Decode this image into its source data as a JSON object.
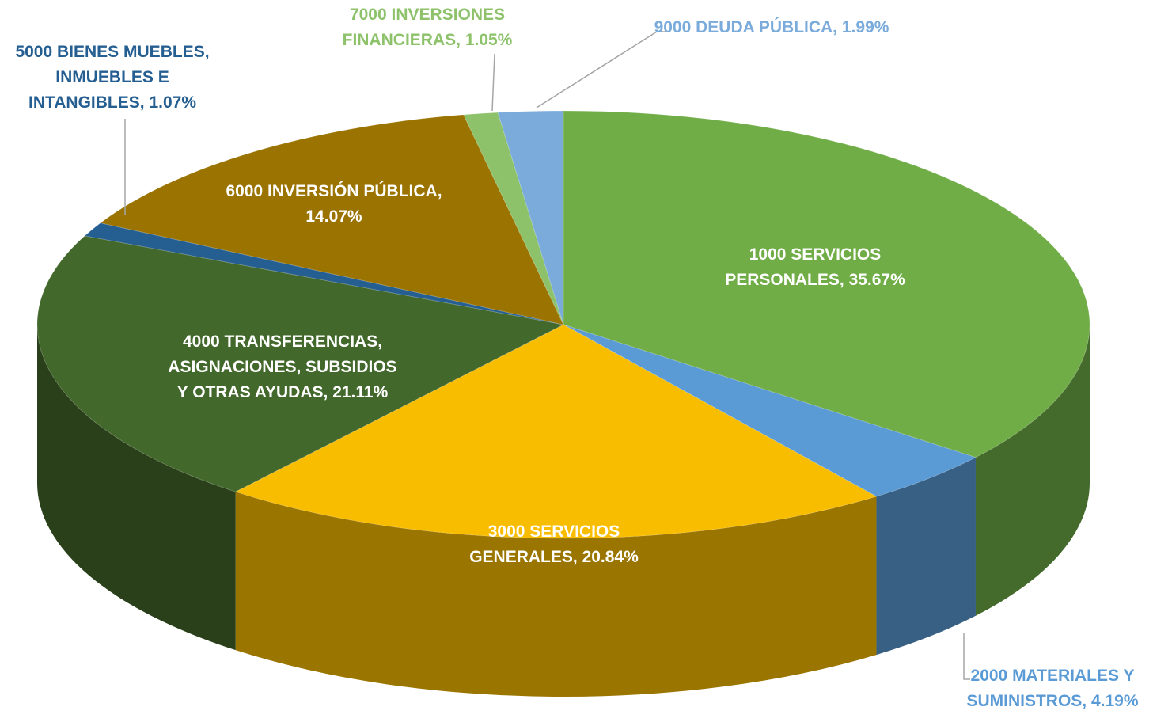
{
  "chart_data": {
    "type": "pie3d",
    "categories": [
      "1000 SERVICIOS PERSONALES,",
      "2000 MATERIALES Y SUMINISTROS,",
      "3000 SERVICIOS GENERALES,",
      "4000 TRANSFERENCIAS, ASIGNACIONES, SUBSIDIOS Y OTRAS AYUDAS,",
      "5000 BIENES MUEBLES, INMUEBLES E INTANGIBLES,",
      "6000 INVERSIÓN PÚBLICA,",
      "7000 INVERSIONES FINANCIERAS,",
      "9000 DEUDA PÚBLICA,"
    ],
    "values": [
      35.67,
      4.19,
      20.84,
      21.11,
      1.07,
      14.07,
      1.05,
      1.99
    ],
    "value_labels": [
      "35.67%",
      "4.19%",
      "20.84%",
      "21.11%",
      "1.07%",
      "14.07%",
      "1.05%",
      "1.99%"
    ],
    "colors": [
      "#70ad47",
      "#5b9bd5",
      "#f9bd00",
      "#43682b",
      "#255e91",
      "#9a7300",
      "#8dc26a",
      "#7aabdb"
    ]
  }
}
